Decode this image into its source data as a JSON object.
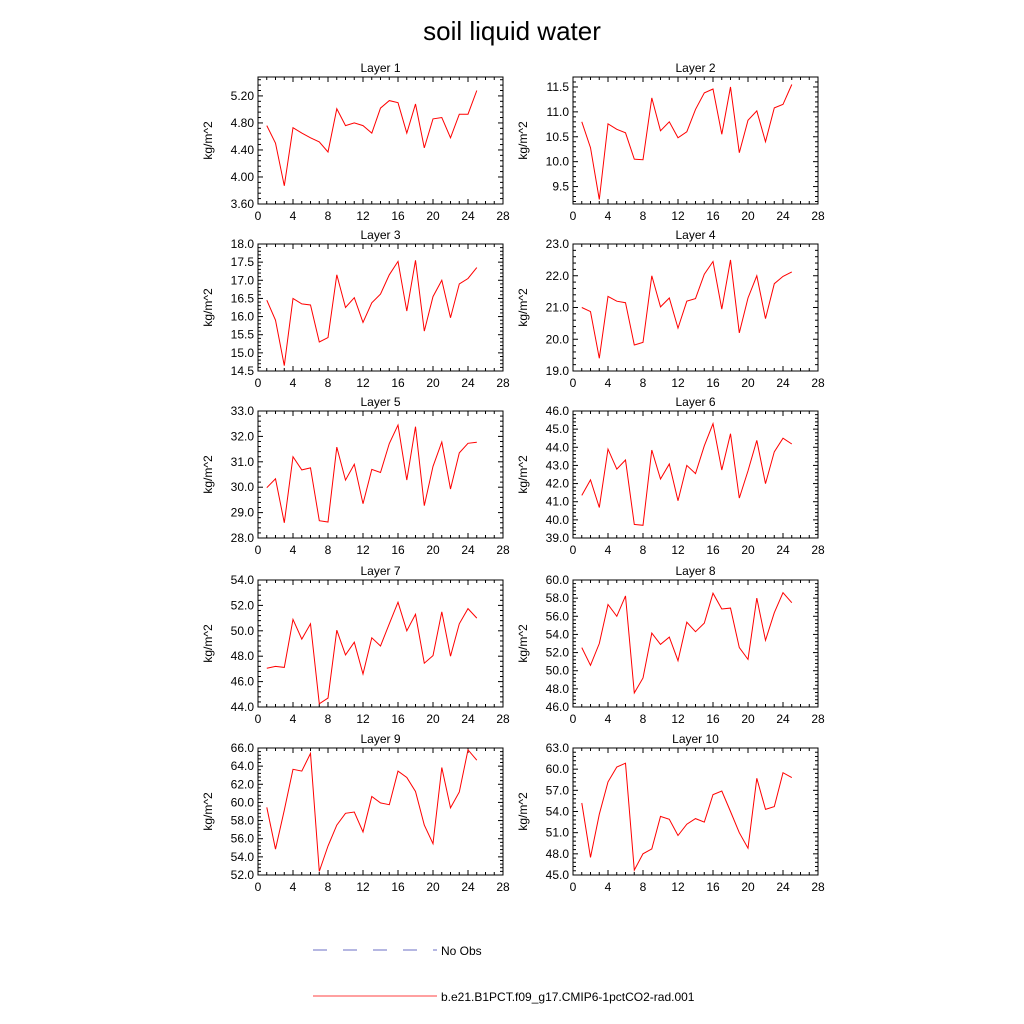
{
  "title": "soil liquid water",
  "legend": {
    "placement": "bottom",
    "entries": [
      {
        "label": "No Obs",
        "color": "#6b6fc4",
        "dashed": true
      },
      {
        "label": "b.e21.B1PCT.f09_g17.CMIP6-1pctCO2-rad.001",
        "color": "#ff4040",
        "dashed": false
      }
    ]
  },
  "chart_data": [
    {
      "type": "line",
      "title": "Layer 1",
      "ylabel": "kg/m^2",
      "xlim": [
        0,
        28
      ],
      "ylim": [
        3.6,
        5.48
      ],
      "xticks": [
        "0",
        "4",
        "8",
        "12",
        "16",
        "20",
        "24",
        "28"
      ],
      "yticks": [
        "3.60",
        "4.00",
        "4.40",
        "4.80",
        "5.20"
      ],
      "x": [
        1,
        2,
        3,
        4,
        5,
        6,
        7,
        8,
        9,
        10,
        11,
        12,
        13,
        14,
        15,
        16,
        17,
        18,
        19,
        20,
        21,
        22,
        23,
        24,
        25
      ],
      "series": [
        {
          "name": "b.e21.B1PCT.f09_g17.CMIP6-1pctCO2-rad.001",
          "color": "#ff0000",
          "values": [
            4.76,
            4.5,
            3.87,
            4.73,
            4.65,
            4.58,
            4.52,
            4.37,
            5.01,
            4.76,
            4.8,
            4.76,
            4.65,
            5.02,
            5.13,
            5.1,
            4.65,
            5.08,
            4.43,
            4.86,
            4.88,
            4.58,
            4.93,
            4.93,
            5.28
          ]
        }
      ]
    },
    {
      "type": "line",
      "title": "Layer 2",
      "ylabel": "kg/m^2",
      "xlim": [
        0,
        28
      ],
      "ylim": [
        9.15,
        11.7
      ],
      "xticks": [
        "0",
        "4",
        "8",
        "12",
        "16",
        "20",
        "24",
        "28"
      ],
      "yticks": [
        "9.5",
        "10.0",
        "10.5",
        "11.0",
        "11.5"
      ],
      "x": [
        1,
        2,
        3,
        4,
        5,
        6,
        7,
        8,
        9,
        10,
        11,
        12,
        13,
        14,
        15,
        16,
        17,
        18,
        19,
        20,
        21,
        22,
        23,
        24,
        25
      ],
      "series": [
        {
          "name": "b.e21.B1PCT.f09_g17.CMIP6-1pctCO2-rad.001",
          "color": "#ff0000",
          "values": [
            10.8,
            10.28,
            9.24,
            10.76,
            10.65,
            10.58,
            10.05,
            10.04,
            11.28,
            10.62,
            10.8,
            10.48,
            10.6,
            11.05,
            11.38,
            11.46,
            10.55,
            11.5,
            10.18,
            10.83,
            11.02,
            10.4,
            11.08,
            11.15,
            11.55
          ]
        }
      ]
    },
    {
      "type": "line",
      "title": "Layer 3",
      "ylabel": "kg/m^2",
      "xlim": [
        0,
        28
      ],
      "ylim": [
        14.5,
        18.0
      ],
      "xticks": [
        "0",
        "4",
        "8",
        "12",
        "16",
        "20",
        "24",
        "28"
      ],
      "yticks": [
        "14.5",
        "15.0",
        "15.5",
        "16.0",
        "16.5",
        "17.0",
        "17.5",
        "18.0"
      ],
      "x": [
        1,
        2,
        3,
        4,
        5,
        6,
        7,
        8,
        9,
        10,
        11,
        12,
        13,
        14,
        15,
        16,
        17,
        18,
        19,
        20,
        21,
        22,
        23,
        24,
        25
      ],
      "series": [
        {
          "name": "b.e21.B1PCT.f09_g17.CMIP6-1pctCO2-rad.001",
          "color": "#ff0000",
          "values": [
            16.45,
            15.9,
            14.65,
            16.5,
            16.35,
            16.32,
            15.3,
            15.42,
            17.15,
            16.25,
            16.52,
            15.84,
            16.38,
            16.62,
            17.15,
            17.52,
            16.15,
            17.55,
            15.6,
            16.55,
            17.0,
            15.97,
            16.9,
            17.05,
            17.35
          ]
        }
      ]
    },
    {
      "type": "line",
      "title": "Layer 4",
      "ylabel": "kg/m^2",
      "xlim": [
        0,
        28
      ],
      "ylim": [
        19.0,
        23.0
      ],
      "xticks": [
        "0",
        "4",
        "8",
        "12",
        "16",
        "20",
        "24",
        "28"
      ],
      "yticks": [
        "19.0",
        "20.0",
        "21.0",
        "22.0",
        "23.0"
      ],
      "x": [
        1,
        2,
        3,
        4,
        5,
        6,
        7,
        8,
        9,
        10,
        11,
        12,
        13,
        14,
        15,
        16,
        17,
        18,
        19,
        20,
        21,
        22,
        23,
        24,
        25
      ],
      "series": [
        {
          "name": "b.e21.B1PCT.f09_g17.CMIP6-1pctCO2-rad.001",
          "color": "#ff0000",
          "values": [
            21.0,
            20.87,
            19.4,
            21.35,
            21.2,
            21.15,
            19.82,
            19.9,
            22.0,
            21.02,
            21.3,
            20.35,
            21.2,
            21.28,
            22.05,
            22.45,
            20.95,
            22.5,
            20.2,
            21.3,
            22.0,
            20.65,
            21.75,
            21.98,
            22.12
          ]
        }
      ]
    },
    {
      "type": "line",
      "title": "Layer 5",
      "ylabel": "kg/m^2",
      "xlim": [
        0,
        28
      ],
      "ylim": [
        28.0,
        33.0
      ],
      "xticks": [
        "0",
        "4",
        "8",
        "12",
        "16",
        "20",
        "24",
        "28"
      ],
      "yticks": [
        "28.0",
        "29.0",
        "30.0",
        "31.0",
        "32.0",
        "33.0"
      ],
      "x": [
        1,
        2,
        3,
        4,
        5,
        6,
        7,
        8,
        9,
        10,
        11,
        12,
        13,
        14,
        15,
        16,
        17,
        18,
        19,
        20,
        21,
        22,
        23,
        24,
        25
      ],
      "series": [
        {
          "name": "b.e21.B1PCT.f09_g17.CMIP6-1pctCO2-rad.001",
          "color": "#ff0000",
          "values": [
            29.98,
            30.33,
            28.6,
            31.2,
            30.68,
            30.76,
            28.68,
            28.63,
            31.58,
            30.28,
            30.9,
            29.35,
            30.7,
            30.58,
            31.72,
            32.45,
            30.28,
            32.38,
            29.27,
            30.82,
            31.78,
            29.93,
            31.35,
            31.73,
            31.77
          ]
        }
      ]
    },
    {
      "type": "line",
      "title": "Layer 6",
      "ylabel": "kg/m^2",
      "xlim": [
        0,
        28
      ],
      "ylim": [
        39.0,
        46.0
      ],
      "xticks": [
        "0",
        "4",
        "8",
        "12",
        "16",
        "20",
        "24",
        "28"
      ],
      "yticks": [
        "39.0",
        "40.0",
        "41.0",
        "42.0",
        "43.0",
        "44.0",
        "45.0",
        "46.0"
      ],
      "x": [
        1,
        2,
        3,
        4,
        5,
        6,
        7,
        8,
        9,
        10,
        11,
        12,
        13,
        14,
        15,
        16,
        17,
        18,
        19,
        20,
        21,
        22,
        23,
        24,
        25
      ],
      "series": [
        {
          "name": "b.e21.B1PCT.f09_g17.CMIP6-1pctCO2-rad.001",
          "color": "#ff0000",
          "values": [
            41.35,
            42.2,
            40.68,
            43.9,
            42.8,
            43.3,
            39.75,
            39.7,
            43.85,
            42.25,
            43.08,
            41.05,
            43.0,
            42.55,
            44.08,
            45.3,
            42.75,
            44.75,
            41.2,
            42.7,
            44.38,
            42.0,
            43.75,
            44.5,
            44.18
          ]
        }
      ]
    },
    {
      "type": "line",
      "title": "Layer 7",
      "ylabel": "kg/m^2",
      "xlim": [
        0,
        28
      ],
      "ylim": [
        44.0,
        54.0
      ],
      "xticks": [
        "0",
        "4",
        "8",
        "12",
        "16",
        "20",
        "24",
        "28"
      ],
      "yticks": [
        "44.0",
        "46.0",
        "48.0",
        "50.0",
        "52.0",
        "54.0"
      ],
      "x": [
        1,
        2,
        3,
        4,
        5,
        6,
        7,
        8,
        9,
        10,
        11,
        12,
        13,
        14,
        15,
        16,
        17,
        18,
        19,
        20,
        21,
        22,
        23,
        24,
        25
      ],
      "series": [
        {
          "name": "b.e21.B1PCT.f09_g17.CMIP6-1pctCO2-rad.001",
          "color": "#ff0000",
          "values": [
            47.05,
            47.2,
            47.12,
            50.9,
            49.35,
            50.55,
            44.25,
            44.7,
            50.05,
            48.1,
            49.1,
            46.6,
            49.45,
            48.8,
            50.55,
            52.25,
            50.0,
            51.3,
            47.45,
            48.05,
            51.5,
            48.0,
            50.55,
            51.75,
            51.0
          ]
        }
      ]
    },
    {
      "type": "line",
      "title": "Layer 8",
      "ylabel": "kg/m^2",
      "xlim": [
        0,
        28
      ],
      "ylim": [
        46.0,
        60.0
      ],
      "xticks": [
        "0",
        "4",
        "8",
        "12",
        "16",
        "20",
        "24",
        "28"
      ],
      "yticks": [
        "46.0",
        "48.0",
        "50.0",
        "52.0",
        "54.0",
        "56.0",
        "58.0",
        "60.0"
      ],
      "x": [
        1,
        2,
        3,
        4,
        5,
        6,
        7,
        8,
        9,
        10,
        11,
        12,
        13,
        14,
        15,
        16,
        17,
        18,
        19,
        20,
        21,
        22,
        23,
        24,
        25
      ],
      "series": [
        {
          "name": "b.e21.B1PCT.f09_g17.CMIP6-1pctCO2-rad.001",
          "color": "#ff0000",
          "values": [
            52.55,
            50.6,
            53.0,
            57.3,
            56.0,
            58.25,
            47.55,
            49.2,
            54.15,
            52.9,
            53.7,
            51.1,
            55.35,
            54.3,
            55.25,
            58.55,
            56.8,
            56.9,
            52.55,
            51.25,
            58.0,
            53.35,
            56.4,
            58.6,
            57.5
          ]
        }
      ]
    },
    {
      "type": "line",
      "title": "Layer 9",
      "ylabel": "kg/m^2",
      "xlim": [
        0,
        28
      ],
      "ylim": [
        52.0,
        66.0
      ],
      "xticks": [
        "0",
        "4",
        "8",
        "12",
        "16",
        "20",
        "24",
        "28"
      ],
      "yticks": [
        "52.0",
        "54.0",
        "56.0",
        "58.0",
        "60.0",
        "62.0",
        "64.0",
        "66.0"
      ],
      "x": [
        1,
        2,
        3,
        4,
        5,
        6,
        7,
        8,
        9,
        10,
        11,
        12,
        13,
        14,
        15,
        16,
        17,
        18,
        19,
        20,
        21,
        22,
        23,
        24,
        25
      ],
      "series": [
        {
          "name": "b.e21.B1PCT.f09_g17.CMIP6-1pctCO2-rad.001",
          "color": "#ff0000",
          "values": [
            59.45,
            54.85,
            59.15,
            63.65,
            63.45,
            65.4,
            52.4,
            55.2,
            57.5,
            58.8,
            58.95,
            56.75,
            60.65,
            59.95,
            59.75,
            63.45,
            62.75,
            61.2,
            57.5,
            55.45,
            63.85,
            59.4,
            61.15,
            65.8,
            64.65
          ]
        }
      ]
    },
    {
      "type": "line",
      "title": "Layer 10",
      "ylabel": "kg/m^2",
      "xlim": [
        0,
        28
      ],
      "ylim": [
        45.0,
        63.0
      ],
      "xticks": [
        "0",
        "4",
        "8",
        "12",
        "16",
        "20",
        "24",
        "28"
      ],
      "yticks": [
        "45.0",
        "48.0",
        "51.0",
        "54.0",
        "57.0",
        "60.0",
        "63.0"
      ],
      "x": [
        1,
        2,
        3,
        4,
        5,
        6,
        7,
        8,
        9,
        10,
        11,
        12,
        13,
        14,
        15,
        16,
        17,
        18,
        19,
        20,
        21,
        22,
        23,
        24,
        25
      ],
      "series": [
        {
          "name": "b.e21.B1PCT.f09_g17.CMIP6-1pctCO2-rad.001",
          "color": "#ff0000",
          "values": [
            55.2,
            47.5,
            53.6,
            58.2,
            60.3,
            60.85,
            45.7,
            48.0,
            48.7,
            53.3,
            52.9,
            50.6,
            52.2,
            53.0,
            52.5,
            56.4,
            56.9,
            54.0,
            51.0,
            48.8,
            58.7,
            54.3,
            54.7,
            59.5,
            58.8
          ]
        }
      ]
    }
  ]
}
